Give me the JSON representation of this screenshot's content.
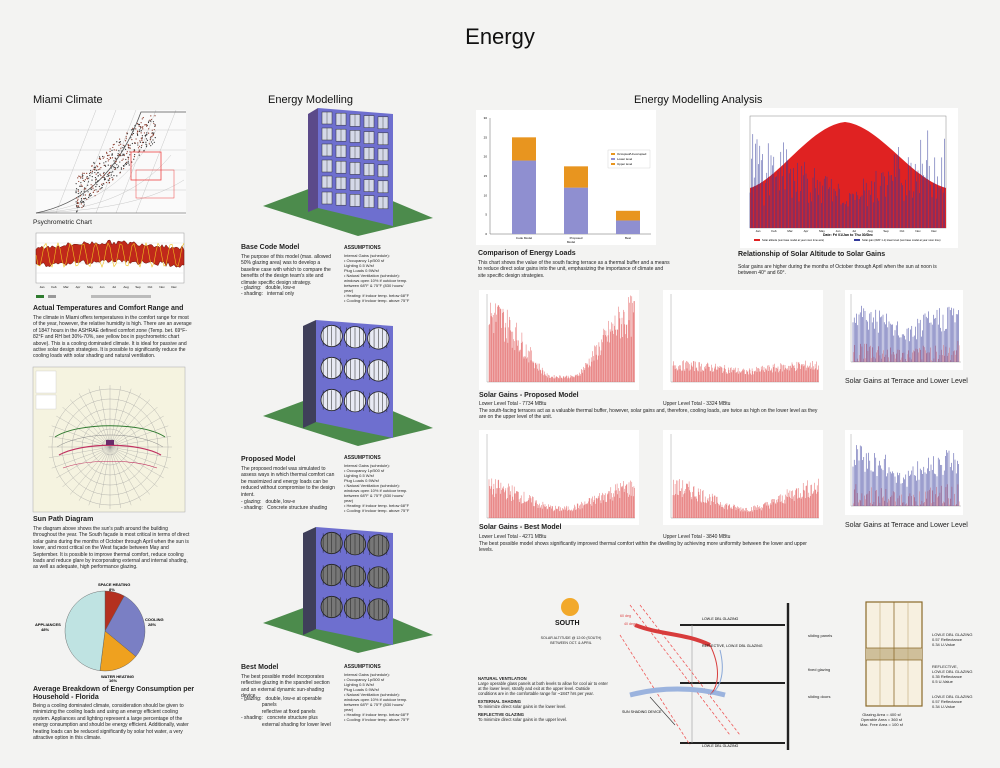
{
  "page": {
    "title": "Energy"
  },
  "headings": {
    "miami": "Miami Climate",
    "modelling": "Energy Modelling",
    "analysis": "Energy Modelling Analysis"
  },
  "miami": {
    "psychro_caption": "Psychrometric Chart",
    "temp_caption": "Actual Temperatures and Comfort Range and",
    "temp_text": "The climate in Miami offers temperatures in the comfort range for most of the year, however, the relative humidity is high. There are an average of 1847 hours in the ASHRAE defined comfort zone (Temp. bet. 69°F-82°F and RH bet 30%-70%, see yellow box in psychrometric chart above). This is a cooling dominated climate. It is ideal for passive and active solar design strategies. It is possible to significantly reduce the cooling loads with solar shading and natural ventilation.",
    "sunpath_caption": "Sun Path Diagram",
    "sunpath_text": "The diagram above shows the sun's path around the building throughout the year. The South façade is most critical in terms of direct solar gains during the months of October through April when the sun is lower, and most critical on the West façade between May and September. It is possible to improve thermal comfort, reduce cooling loads and reduce glare by incorporating external and internal shading, as well as adequate, high performance glazing.",
    "pie_caption": "Average Breakdown of Energy Consumption per Household  - Florida",
    "pie_text": "Being a cooling dominated climate, consideration should be given to minimizing the cooling loads and using an energy efficient cooling system. Appliances and lighting represent a large percentage of the energy consumption and should be energy efficient. Additionally, water heating loads can be reduced significantly by solar hot water, a very attractive option in this climate.",
    "months": [
      "Jan",
      "Feb",
      "Mar",
      "Apr",
      "May",
      "Jun",
      "Jul",
      "Aug",
      "Sep",
      "Oct",
      "Nov",
      "Dec"
    ]
  },
  "pie_chart": {
    "type": "pie",
    "slices": [
      {
        "label": "SPACE HEATING",
        "pct_label": "8%",
        "value": 8,
        "color": "#b4301f"
      },
      {
        "label": "COOLING",
        "pct_label": "28%",
        "value": 28,
        "color": "#7a7fc4"
      },
      {
        "label": "WATER HEATING",
        "pct_label": "16%",
        "value": 16,
        "color": "#efa11f"
      },
      {
        "label": "APPLIANCES",
        "pct_label": "48%",
        "value": 48,
        "color": "#bfe3e2"
      }
    ]
  },
  "modelling": {
    "assumptions_label": "ASSUMPTIONS",
    "base": {
      "title": "Base Code Model",
      "text": "The purpose of this model (max. allowed 50% glazing area) was to develop a baseline case with which to compare the benefits of the design team's site and climate specific design strategy.",
      "spec": [
        "- glazing:   double, low-e",
        "- shading:   internal only"
      ],
      "assumptions": [
        "Internal Gains (schedule):",
        "• Occupancy 1p/500 sf",
        "  Lighting 0.5 W/sf",
        "  Plug Loads 0.9W/sf",
        "• Natural Ventilation (schedule):",
        "  windows open 10% if outdoor temp.",
        "  between 68°F & 75°F (830 hours/",
        "  year)",
        "• Heating: if indoor temp. below 68°F",
        "• Cooling: if indoor temp. above 75°F"
      ]
    },
    "proposed": {
      "title": "Proposed Model",
      "text": "The proposed model was simulated to assess ways in which thermal comfort can be maximized and energy loads can be reduced without compromise to the design intent.",
      "spec": [
        "- glazing:   double, low-e",
        "- shading:   Concrete structure shading"
      ],
      "assumptions": [
        "Internal Gains (schedule):",
        "• Occupancy 1p/500 sf",
        "  Lighting 0.5 W/sf",
        "  Plug Loads 0.9W/sf",
        "• Natural Ventilation (schedule):",
        "  windows open 10% if outdoor temp.",
        "  between 68°F & 75°F (830 hours/",
        "  year)",
        "• Heating: if indoor temp. below 68°F",
        "• Cooling: if indoor temp. above 75°F"
      ]
    },
    "best": {
      "title": "Best Model",
      "text": "The best possible model incorporates reflective glazing in the spandrel section and an external dynamic sun-shading device.",
      "spec": [
        "- glazing:   double, low-e at operable",
        "               panels",
        "               reflective at fixed panels",
        "- shading:   concrete structure plus",
        "               external shading for lower level"
      ],
      "assumptions": [
        "Internal Gains (schedule):",
        "• Occupancy 1p/500 sf",
        "  Lighting 0.5 W/sf",
        "  Plug Loads 0.9W/sf",
        "• Natural Ventilation (schedule):",
        "  windows open 10% if outdoor temp.",
        "  between 68°F & 75°F (830 hours/",
        "  year)",
        "• Heating: if indoor temp. below 68°F",
        "• Cooling: if indoor temp. above 75°F"
      ]
    }
  },
  "analysis": {
    "loads_caption": "Comparison of Energy Loads",
    "loads_text": "This chart shows the value of the south facing terrace as a thermal buffer and a means to reduce direct solar gains into the unit, emphasizing the importance of climate and site specific design strategies.",
    "altitude_caption": "Relationship of Solar Altitude to Solar Gains",
    "altitude_text": "Solar gains are higher during the months of October through April when the sun at noon is between 40° and 60°.",
    "proposed_caption": "Solar Gains - Proposed Model",
    "proposed_lower": "Lower Level Total - 7734 MBtu",
    "proposed_upper": "Upper Level Total - 3324 MBtu",
    "proposed_text": "The south-facing terraces act as a valuable thermal buffer, however, solar gains and, therefore, cooling loads, are twice as high on the lower level as they are on the upper level of the unit.",
    "terrace_caption_1": "Solar Gains at Terrace and Lower Level",
    "best_caption": "Solar Gains - Best Model",
    "best_lower": "Lower Level Total - 4271 MBtu",
    "best_upper": "Upper Level Total - 3840 MBtu",
    "best_text": "The best possible model shows significantly improved thermal comfort within the dwelling by achieving more uniformity between the lower and upper levels.",
    "terrace_caption_2": "Solar Gains at Terrace and Lower Level",
    "altitude_legend_1": "Solar altitude (sun base model at year noon time axis)",
    "altitude_legend_2": "Solar gain (WAT 1-1) lower level (sun base model at year noon time)",
    "altitude_xlabel": "Date: Fri 01/Jan to Thu 30/Dec"
  },
  "loads_chart": {
    "type": "bar",
    "categories": [
      "Code Model",
      "Proposed",
      "Best"
    ],
    "series": [
      {
        "name": "Lower level",
        "values": [
          19,
          12,
          3.5
        ],
        "color": "#8f8fd0"
      },
      {
        "name": "Upper level",
        "values": [
          6,
          5.5,
          2.5
        ],
        "color": "#e8951f"
      }
    ],
    "legend": [
      "Occupied/Unoccupied",
      "Lower level",
      "Upper level"
    ],
    "ylim": [
      0,
      30
    ],
    "yticks": [
      "30",
      "25",
      "20",
      "15",
      "10",
      "5",
      "0"
    ],
    "xlabel": "Model"
  },
  "section": {
    "sun_label": "SOUTH",
    "sun_text": "SOLAR ALTITUDE @ 12:00 (SOUTH) BETWEEN OCT. & APRIL",
    "angle_1": "60 deg",
    "angle_2": "40 deg",
    "glazing_top": "LOW-E DBL GLAZING",
    "reflective": "REFLECTIVE, LOW-E DBL GLAZING",
    "glazing_bottom": "LOW-E DBL GLAZING",
    "device": "SUN SHADING DEVICE",
    "nv_title": "NATURAL VENTILATION",
    "nv_text": "Large operable glass panels at both levels to allow for cool air to enter at the lower level, stratify and exit at the upper level. Outside conditions are in the comfortable range for ~1847 hrs per year.",
    "es_title": "EXTERNAL SHADING",
    "es_text": "To minimize direct solar gains in the lower level.",
    "rg_title": "REFLECTIVE GLAZING",
    "rg_text": "To minimize direct solar gains in the upper level."
  },
  "elevation": {
    "left_labels": [
      "sliding panels",
      "fixed glazing",
      "sliding doors"
    ],
    "right_labels": [
      "LOW-E DBL GLAZING\n0.57 Reflectance\n0.34 U-Value",
      "REFLECTIVE,\nLOW-E DBL GLAZING\n0.35 Reflectance\n0.5 U-Value",
      "LOW-E DBL GLAZING\n0.57 Reflectance\n0.34 U-Value"
    ],
    "area_note": "Glazing Area = 400 sf\nOperable Area = 360 sf\nMax. Free Area = 100 sf"
  }
}
